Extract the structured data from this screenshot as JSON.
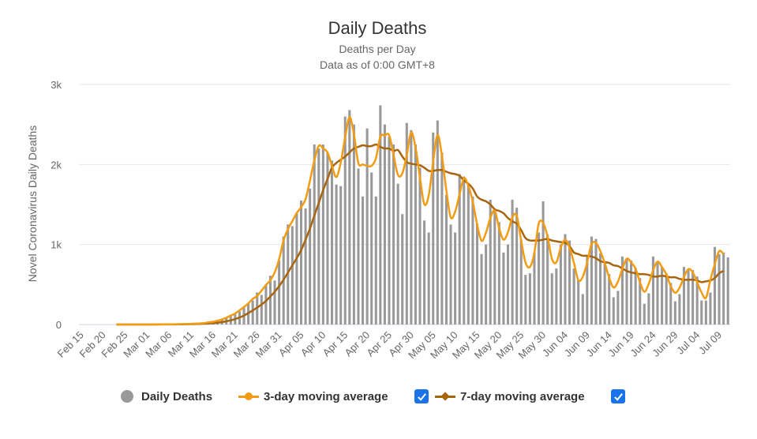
{
  "colors": {
    "bars": "#999999",
    "ma3": "#f39c12",
    "ma7": "#a8650f",
    "grid": "#e6e6e6",
    "axis": "#ccd6eb",
    "checkbox": "#1a73e8"
  },
  "legend": {
    "items": [
      {
        "label": "Daily Deaths",
        "icon": "circle-marker-icon"
      },
      {
        "label": "3-day moving average",
        "icon": "line-circle-marker-icon",
        "checked": true
      },
      {
        "label": "7-day moving average",
        "icon": "line-diamond-marker-icon",
        "checked": true
      }
    ]
  },
  "chart_data": {
    "type": "bar",
    "title": "Daily Deaths",
    "subtitle": "Deaths per Day",
    "subtitle2": "Data as of 0:00 GMT+8",
    "xlabel": "",
    "ylabel": "Novel Coronavirus Daily Deaths",
    "ylim": [
      0,
      3000
    ],
    "yticks": [
      0,
      1000,
      2000,
      3000
    ],
    "ytick_labels": [
      "0",
      "1k",
      "2k",
      "3k"
    ],
    "grid": true,
    "legend_position": "bottom",
    "start_date": "Feb 15",
    "x_tick_labels": [
      "Feb 15",
      "Feb 20",
      "Feb 25",
      "Mar 01",
      "Mar 06",
      "Mar 11",
      "Mar 16",
      "Mar 21",
      "Mar 26",
      "Mar 31",
      "Apr 05",
      "Apr 10",
      "Apr 15",
      "Apr 20",
      "Apr 25",
      "Apr 30",
      "May 05",
      "May 10",
      "May 15",
      "May 20",
      "May 25",
      "May 30",
      "Jun 04",
      "Jun 09",
      "Jun 14",
      "Jun 19",
      "Jun 24",
      "Jun 29",
      "Jul 04",
      "Jul 09"
    ],
    "x_tick_step_days": 5,
    "series": [
      {
        "name": "Daily Deaths",
        "kind": "bar",
        "first_day_index": 0,
        "values": [
          0,
          0,
          0,
          0,
          0,
          0,
          0,
          0,
          0,
          0,
          0,
          0,
          0,
          0,
          0,
          0,
          1,
          1,
          2,
          2,
          2,
          2,
          5,
          5,
          8,
          10,
          10,
          12,
          20,
          25,
          35,
          45,
          60,
          85,
          110,
          140,
          165,
          230,
          260,
          300,
          400,
          370,
          500,
          610,
          550,
          800,
          1100,
          1250,
          1230,
          1400,
          1550,
          1450,
          1700,
          2250,
          2200,
          2250,
          2150,
          2050,
          1750,
          1730,
          2600,
          2680,
          2500,
          1950,
          1600,
          2450,
          1900,
          1600,
          2740,
          2500,
          2350,
          2250,
          1760,
          1380,
          2520,
          2430,
          2250,
          1960,
          1300,
          1150,
          2400,
          2550,
          2150,
          1620,
          1250,
          1150,
          1880,
          1850,
          1750,
          1600,
          1260,
          880,
          1000,
          1560,
          1430,
          1280,
          900,
          1000,
          1560,
          1460,
          1060,
          620,
          640,
          900,
          1150,
          1540,
          1120,
          640,
          700,
          1000,
          1130,
          1050,
          700,
          560,
          380,
          850,
          1100,
          1070,
          890,
          790,
          630,
          340,
          420,
          850,
          820,
          800,
          710,
          580,
          260,
          390,
          850,
          790,
          720,
          640,
          520,
          290,
          380,
          720,
          680,
          680,
          600,
          300,
          300,
          400,
          970,
          880,
          900,
          840
        ]
      },
      {
        "name": "3-day moving average",
        "kind": "line",
        "values": [
          0,
          0,
          0,
          0,
          0,
          0,
          0,
          0,
          0,
          0,
          0,
          0,
          0,
          0,
          0,
          0,
          1,
          1,
          2,
          2,
          2,
          3,
          4,
          6,
          8,
          9,
          11,
          14,
          19,
          27,
          35,
          47,
          63,
          85,
          112,
          138,
          178,
          218,
          263,
          320,
          357,
          423,
          493,
          553,
          653,
          817,
          1050,
          1193,
          1293,
          1393,
          1467,
          1567,
          1800,
          2050,
          2233,
          2200,
          2150,
          1983,
          1843,
          2027,
          2337,
          2593,
          2377,
          2017,
          2000,
          1983,
          1983,
          2080,
          2347,
          2363,
          2367,
          2120,
          1870,
          1890,
          2117,
          2400,
          2213,
          1837,
          1503,
          1617,
          2033,
          2367,
          2107,
          1673,
          1340,
          1410,
          1627,
          1827,
          1733,
          1537,
          1247,
          1047,
          1147,
          1330,
          1423,
          1203,
          1060,
          1153,
          1340,
          1360,
          1047,
          773,
          720,
          897,
          1263,
          1270,
          1100,
          820,
          777,
          960,
          1060,
          960,
          770,
          553,
          597,
          777,
          1007,
          1020,
          917,
          770,
          587,
          463,
          537,
          697,
          823,
          777,
          697,
          530,
          410,
          510,
          677,
          787,
          717,
          627,
          480,
          397,
          460,
          593,
          693,
          653,
          527,
          400,
          333,
          557,
          750,
          917,
          880
        ]
      },
      {
        "name": "7-day moving average",
        "kind": "line",
        "values": [
          0,
          0,
          0,
          0,
          0,
          0,
          0,
          0,
          0,
          0,
          0,
          0,
          0,
          0,
          0,
          0,
          0,
          0,
          1,
          1,
          1,
          1,
          2,
          3,
          4,
          5,
          6,
          8,
          11,
          14,
          18,
          23,
          30,
          40,
          52,
          68,
          88,
          112,
          143,
          177,
          212,
          250,
          295,
          350,
          410,
          480,
          560,
          650,
          740,
          830,
          930,
          1060,
          1200,
          1360,
          1520,
          1680,
          1820,
          1960,
          2020,
          2060,
          2100,
          2150,
          2200,
          2220,
          2240,
          2230,
          2230,
          2250,
          2220,
          2200,
          2200,
          2170,
          2180,
          2100,
          2030,
          2010,
          2000,
          1990,
          1960,
          1920,
          1920,
          1930,
          1930,
          1910,
          1890,
          1880,
          1860,
          1800,
          1760,
          1700,
          1600,
          1560,
          1540,
          1500,
          1440,
          1420,
          1390,
          1330,
          1290,
          1260,
          1180,
          1080,
          1050,
          1050,
          1050,
          1060,
          1070,
          1050,
          1040,
          1030,
          1020,
          980,
          900,
          880,
          860,
          860,
          850,
          830,
          790,
          780,
          770,
          740,
          730,
          700,
          670,
          650,
          640,
          630,
          630,
          620,
          600,
          600,
          610,
          600,
          590,
          590,
          570,
          560,
          560,
          560,
          550,
          530,
          540,
          550,
          580,
          640,
          670
        ]
      }
    ]
  }
}
